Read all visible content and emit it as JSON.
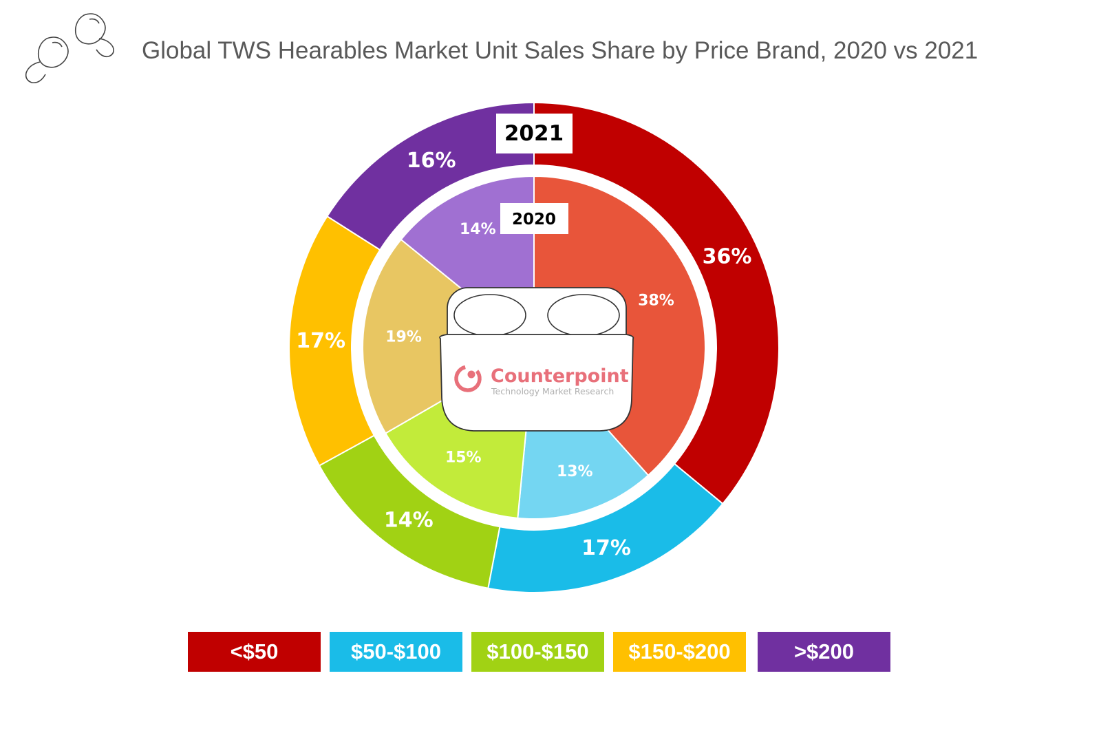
{
  "title": "Global TWS Hearables Market Unit Sales Share by Price Brand, 2020 vs 2021",
  "logo": {
    "name": "Counterpoint",
    "tagline": "Technology Market Research"
  },
  "chart_data": {
    "type": "pie",
    "subtype": "nested-donut",
    "title": "Global TWS Hearables Market Unit Sales Share by Price Brand, 2020 vs 2021",
    "categories": [
      "<$50",
      "$50-$100",
      "$100-$150",
      "$150-$200",
      ">$200"
    ],
    "series": [
      {
        "name": "2021",
        "ring": "outer",
        "values": [
          36,
          17,
          14,
          17,
          16
        ],
        "labels": [
          "36%",
          "17%",
          "14%",
          "17%",
          "16%"
        ]
      },
      {
        "name": "2020",
        "ring": "inner",
        "values": [
          38,
          13,
          15,
          19,
          14
        ],
        "labels": [
          "38%",
          "13%",
          "15%",
          "19%",
          "14%"
        ]
      }
    ],
    "colors_outer": [
      "#C00000",
      "#1ABCE8",
      "#A1D214",
      "#FFC000",
      "#7030A0"
    ],
    "colors_inner": [
      "#E8553A",
      "#74D6F2",
      "#C2EB3A",
      "#E8C662",
      "#A070D2"
    ],
    "legend": [
      "<$50",
      "$50-$100",
      "$100-$150",
      "$150-$200",
      ">$200"
    ]
  }
}
